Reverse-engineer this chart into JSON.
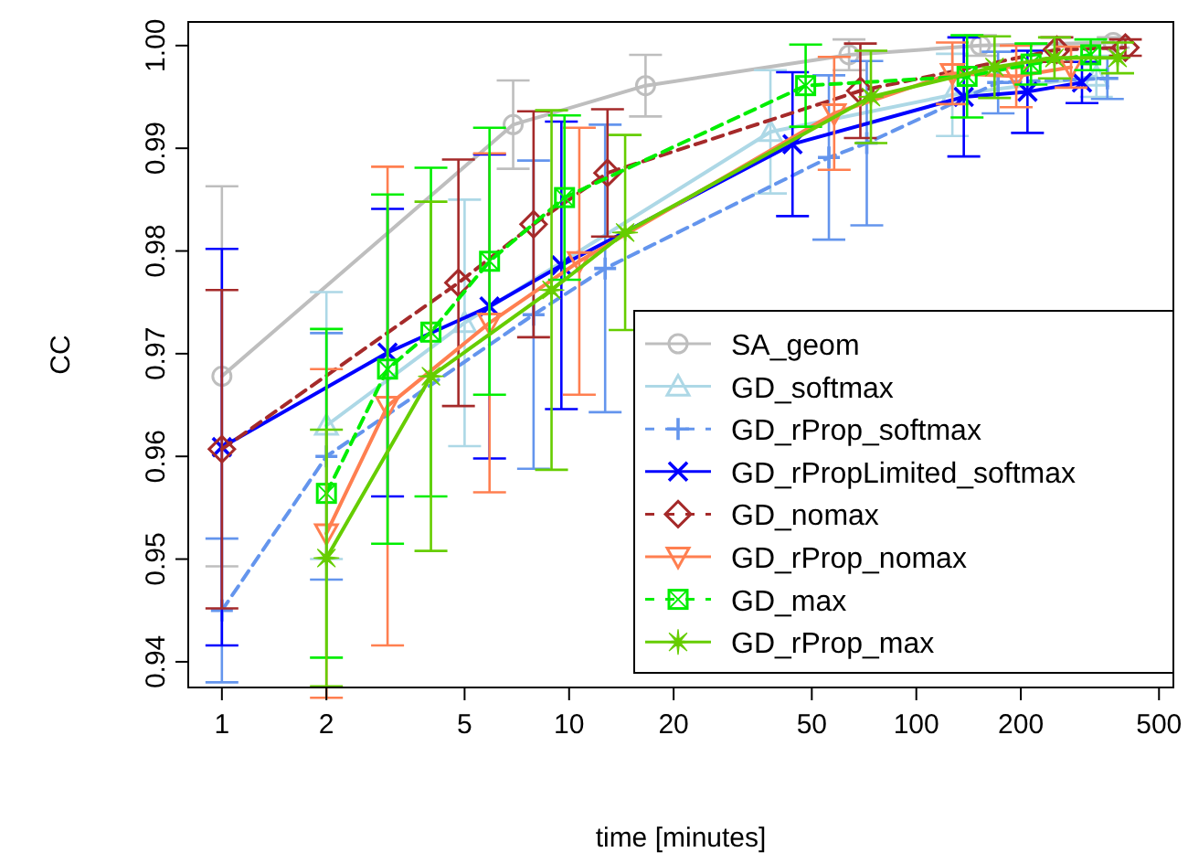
{
  "chart_data": {
    "type": "line",
    "xlabel": "time [minutes]",
    "ylabel": "CC",
    "log": "x",
    "xlim": [
      0.8,
      550
    ],
    "xticks": [
      1,
      2,
      5,
      10,
      20,
      50,
      100,
      200,
      500
    ],
    "ylim": [
      0.9375,
      1.0023
    ],
    "yticks": [
      {
        "value": 0.94,
        "label": "0.94"
      },
      {
        "value": 0.95,
        "label": "0.95"
      },
      {
        "value": 0.96,
        "label": "0.96"
      },
      {
        "value": 0.97,
        "label": "0.97"
      },
      {
        "value": 0.98,
        "label": "0.98"
      },
      {
        "value": 0.99,
        "label": "0.99"
      },
      {
        "value": 1,
        "label": "1.00"
      }
    ],
    "grid": false,
    "legend": "bottom right",
    "series": [
      {
        "name": "SA_geom",
        "color": "#bebebe",
        "marker": "circle",
        "line_style": "solid",
        "x": [
          1,
          6.9,
          16.6,
          64,
          153,
          369
        ],
        "values": [
          0.9678,
          0.9923,
          0.9961,
          0.9991,
          1.0,
          1.0003
        ],
        "errors": [
          0.0185,
          0.0043,
          0.003,
          0.0015,
          0.001,
          0.0005
        ]
      },
      {
        "name": "GD_softmax",
        "color": "#add8e6",
        "marker": "triangle",
        "line_style": "solid",
        "x": [
          2,
          5,
          10,
          38,
          127,
          330
        ],
        "values": [
          0.963,
          0.973,
          null,
          0.9916,
          0.9952,
          0.997
        ],
        "errors": [
          0.013,
          0.012,
          null,
          0.006,
          0.004,
          0.002
        ]
      },
      {
        "name": "GD_rProp_softmax",
        "color": "#6495ed",
        "marker": "plus",
        "line_style": "dashed",
        "x": [
          1,
          2,
          7.9,
          12.7,
          56,
          72,
          172,
          355
        ],
        "values": [
          0.945,
          0.96,
          0.9738,
          0.9783,
          0.9891,
          0.9905,
          0.9964,
          0.9968
        ],
        "errors": [
          0.007,
          0.012,
          0.015,
          0.014,
          0.008,
          0.008,
          0.003,
          0.002
        ]
      },
      {
        "name": "GD_rPropLimited_softmax",
        "color": "#0000ff",
        "marker": "cross",
        "line_style": "solid",
        "x": [
          1,
          3,
          5.9,
          9.5,
          44,
          137,
          209,
          300
        ],
        "values": [
          0.9609,
          0.9701,
          0.9746,
          0.9786,
          0.9904,
          0.995,
          0.9955,
          0.9964
        ],
        "errors": [
          0.0193,
          0.014,
          0.0148,
          0.014,
          0.007,
          0.0058,
          0.004,
          0.002
        ]
      },
      {
        "name": "GD_nomax",
        "color": "#a52a2a",
        "marker": "diamond",
        "line_style": "dashed",
        "x": [
          1,
          4.8,
          7.9,
          12.9,
          69,
          254,
          400
        ],
        "values": [
          0.9607,
          0.9769,
          0.9826,
          0.9876,
          0.9956,
          0.9996,
          0.9998
        ],
        "errors": [
          0.0155,
          0.012,
          0.011,
          0.0062,
          0.0046,
          0.0012,
          0.0008
        ]
      },
      {
        "name": "GD_rProp_nomax",
        "color": "#ff7f50",
        "marker": "triangle-down",
        "line_style": "solid",
        "x": [
          2,
          3,
          5.9,
          10.7,
          58,
          127,
          194,
          279
        ],
        "values": [
          0.9525,
          0.9649,
          0.973,
          0.979,
          0.9934,
          0.9973,
          0.997,
          0.9979
        ],
        "errors": [
          0.016,
          0.0233,
          0.0165,
          0.013,
          0.0055,
          0.003,
          0.003,
          0.002
        ]
      },
      {
        "name": "GD_max",
        "color": "#00ee00",
        "marker": "square",
        "line_style": "dashed",
        "x": [
          2,
          3,
          4,
          5.9,
          9.7,
          48,
          140,
          214,
          318
        ],
        "values": [
          0.9564,
          0.9685,
          0.9721,
          0.979,
          0.9852,
          0.9961,
          0.997,
          0.9982,
          0.9991
        ],
        "errors": [
          0.016,
          0.017,
          0.016,
          0.013,
          0.008,
          0.004,
          0.004,
          0.002,
          0.0015
        ]
      },
      {
        "name": "GD_rProp_max",
        "color": "#66cd00",
        "marker": "star",
        "line_style": "solid",
        "x": [
          2,
          4,
          8.9,
          14.5,
          74,
          168,
          250,
          380
        ],
        "values": [
          0.9501,
          0.9678,
          0.9762,
          0.9818,
          0.995,
          0.9979,
          0.9988,
          0.9988
        ],
        "errors": [
          0.0125,
          0.017,
          0.0175,
          0.0095,
          0.0045,
          0.003,
          0.002,
          0.0015
        ]
      }
    ]
  }
}
